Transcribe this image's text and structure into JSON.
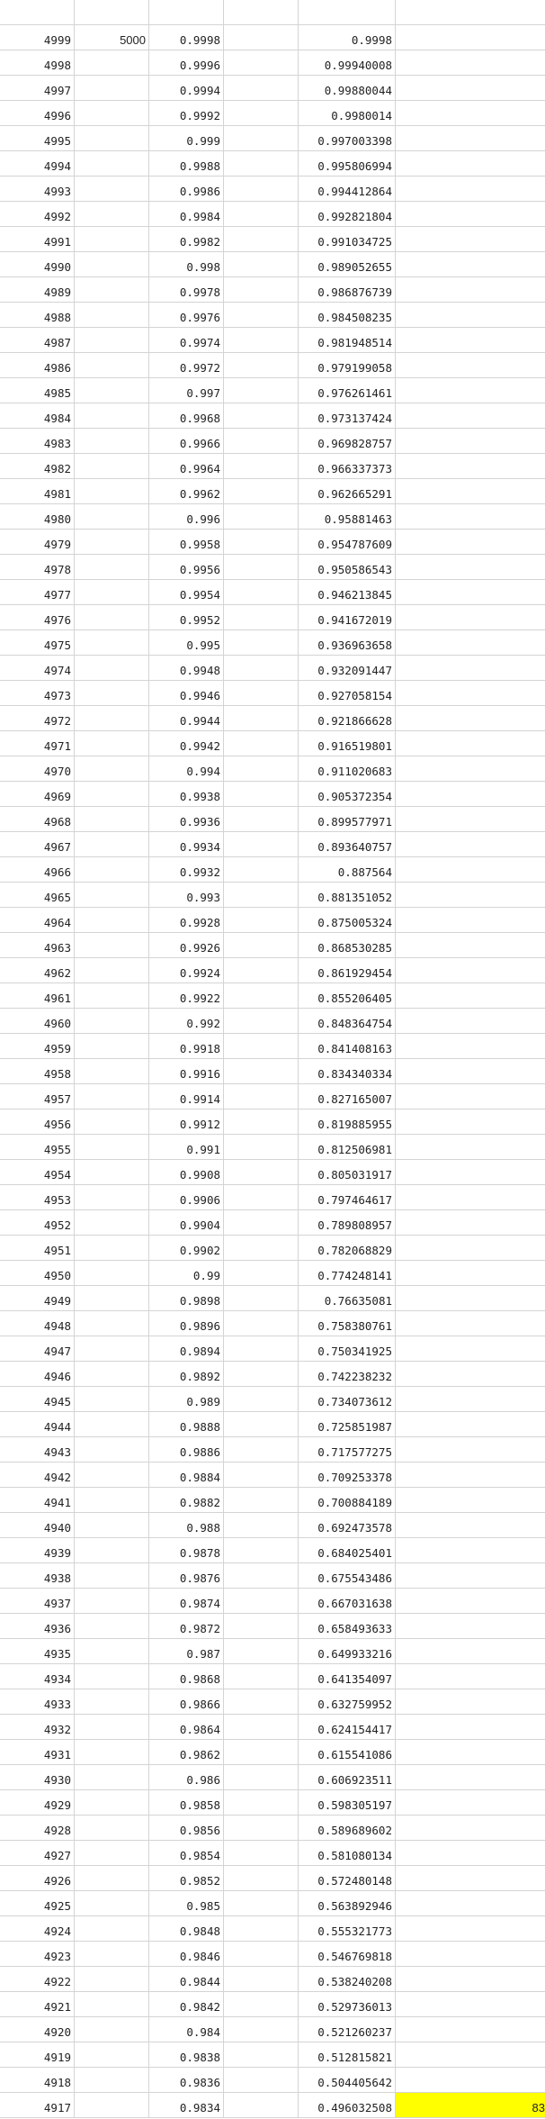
{
  "sheet": {
    "highlight_color": "#ffff00",
    "col_a": [
      4999,
      4998,
      4997,
      4996,
      4995,
      4994,
      4993,
      4992,
      4991,
      4990,
      4989,
      4988,
      4987,
      4986,
      4985,
      4984,
      4983,
      4982,
      4981,
      4980,
      4979,
      4978,
      4977,
      4976,
      4975,
      4974,
      4973,
      4972,
      4971,
      4970,
      4969,
      4968,
      4967,
      4966,
      4965,
      4964,
      4963,
      4962,
      4961,
      4960,
      4959,
      4958,
      4957,
      4956,
      4955,
      4954,
      4953,
      4952,
      4951,
      4950,
      4949,
      4948,
      4947,
      4946,
      4945,
      4944,
      4943,
      4942,
      4941,
      4940,
      4939,
      4938,
      4937,
      4936,
      4935,
      4934,
      4933,
      4932,
      4931,
      4930,
      4929,
      4928,
      4927,
      4926,
      4925,
      4924,
      4923,
      4922,
      4921,
      4920,
      4919,
      4918,
      4917
    ],
    "col_b_first": "5000",
    "col_c": [
      "0.9998",
      "0.9996",
      "0.9994",
      "0.9992",
      "0.999",
      "0.9988",
      "0.9986",
      "0.9984",
      "0.9982",
      "0.998",
      "0.9978",
      "0.9976",
      "0.9974",
      "0.9972",
      "0.997",
      "0.9968",
      "0.9966",
      "0.9964",
      "0.9962",
      "0.996",
      "0.9958",
      "0.9956",
      "0.9954",
      "0.9952",
      "0.995",
      "0.9948",
      "0.9946",
      "0.9944",
      "0.9942",
      "0.994",
      "0.9938",
      "0.9936",
      "0.9934",
      "0.9932",
      "0.993",
      "0.9928",
      "0.9926",
      "0.9924",
      "0.9922",
      "0.992",
      "0.9918",
      "0.9916",
      "0.9914",
      "0.9912",
      "0.991",
      "0.9908",
      "0.9906",
      "0.9904",
      "0.9902",
      "0.99",
      "0.9898",
      "0.9896",
      "0.9894",
      "0.9892",
      "0.989",
      "0.9888",
      "0.9886",
      "0.9884",
      "0.9882",
      "0.988",
      "0.9878",
      "0.9876",
      "0.9874",
      "0.9872",
      "0.987",
      "0.9868",
      "0.9866",
      "0.9864",
      "0.9862",
      "0.986",
      "0.9858",
      "0.9856",
      "0.9854",
      "0.9852",
      "0.985",
      "0.9848",
      "0.9846",
      "0.9844",
      "0.9842",
      "0.984",
      "0.9838",
      "0.9836",
      "0.9834"
    ],
    "col_e": [
      "0.9998",
      "0.99940008",
      "0.99880044",
      "0.9980014",
      "0.997003398",
      "0.995806994",
      "0.994412864",
      "0.992821804",
      "0.991034725",
      "0.989052655",
      "0.986876739",
      "0.984508235",
      "0.981948514",
      "0.979199058",
      "0.976261461",
      "0.973137424",
      "0.969828757",
      "0.966337373",
      "0.962665291",
      "0.95881463",
      "0.954787609",
      "0.950586543",
      "0.946213845",
      "0.941672019",
      "0.936963658",
      "0.932091447",
      "0.927058154",
      "0.921866628",
      "0.916519801",
      "0.911020683",
      "0.905372354",
      "0.899577971",
      "0.893640757",
      "0.887564",
      "0.881351052",
      "0.875005324",
      "0.868530285",
      "0.861929454",
      "0.855206405",
      "0.848364754",
      "0.841408163",
      "0.834340334",
      "0.827165007",
      "0.819885955",
      "0.812506981",
      "0.805031917",
      "0.797464617",
      "0.789808957",
      "0.782068829",
      "0.774248141",
      "0.76635081",
      "0.758380761",
      "0.750341925",
      "0.742238232",
      "0.734073612",
      "0.725851987",
      "0.717577275",
      "0.709253378",
      "0.700884189",
      "0.692473578",
      "0.684025401",
      "0.675543486",
      "0.667031638",
      "0.658493633",
      "0.649933216",
      "0.641354097",
      "0.632759952",
      "0.624154417",
      "0.615541086",
      "0.606923511",
      "0.598305197",
      "0.589689602",
      "0.581080134",
      "0.572480148",
      "0.563892946",
      "0.555321773",
      "0.546769818",
      "0.538240208",
      "0.529736013",
      "0.521260237",
      "0.512815821",
      "0.504405642",
      "0.496032508"
    ],
    "col_f_last": "83"
  }
}
